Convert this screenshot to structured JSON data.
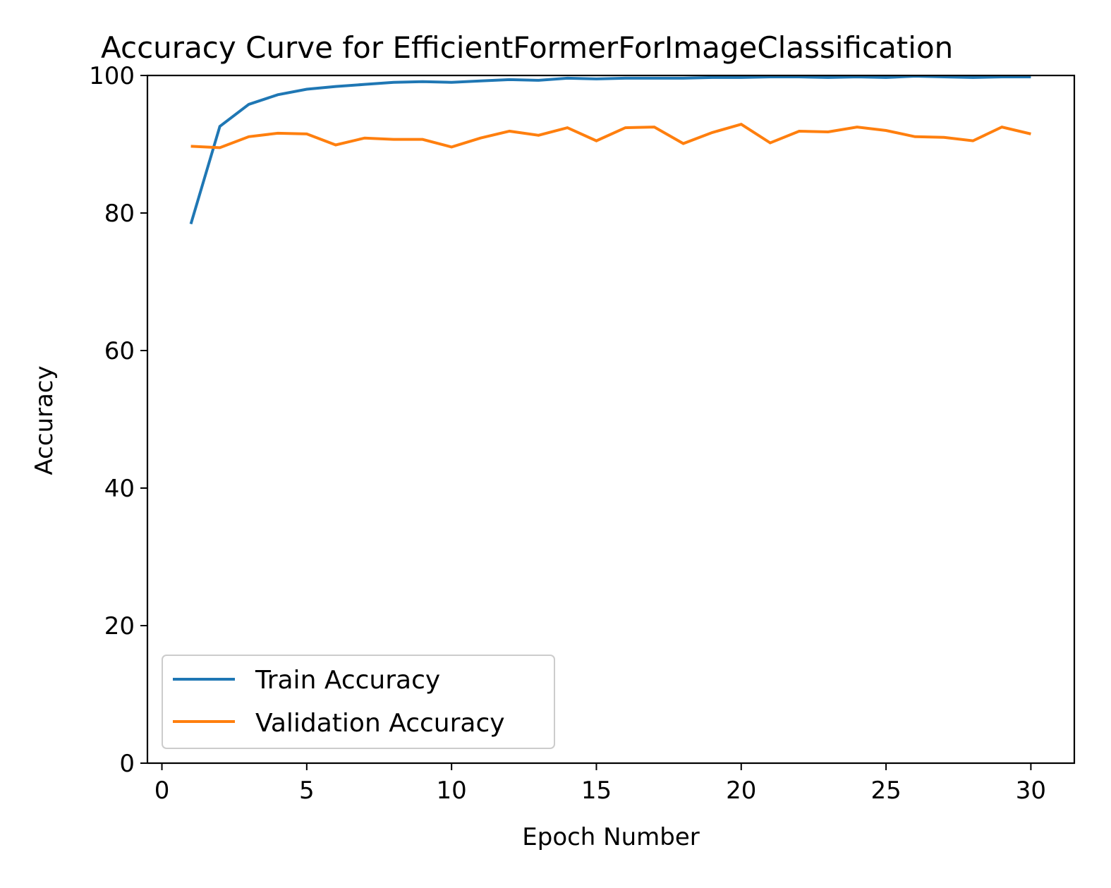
{
  "chart_data": {
    "type": "line",
    "title": "Accuracy Curve for  EfficientFormerForImageClassification",
    "xlabel": "Epoch Number",
    "ylabel": "Accuracy",
    "xlim": [
      -0.5,
      31.5
    ],
    "ylim": [
      0,
      100
    ],
    "xticks": [
      0,
      5,
      10,
      15,
      20,
      25,
      30
    ],
    "yticks": [
      0,
      20,
      40,
      60,
      80,
      100
    ],
    "grid": false,
    "legend_position": "lower-left",
    "x": [
      1,
      2,
      3,
      4,
      5,
      6,
      7,
      8,
      9,
      10,
      11,
      12,
      13,
      14,
      15,
      16,
      17,
      18,
      19,
      20,
      21,
      22,
      23,
      24,
      25,
      26,
      27,
      28,
      29,
      30
    ],
    "series": [
      {
        "name": "Train Accuracy",
        "color": "#1f77b4",
        "values": [
          78.4,
          92.6,
          95.8,
          97.2,
          98.0,
          98.4,
          98.7,
          99.0,
          99.1,
          99.0,
          99.2,
          99.4,
          99.3,
          99.6,
          99.5,
          99.6,
          99.6,
          99.6,
          99.7,
          99.7,
          99.8,
          99.8,
          99.7,
          99.8,
          99.7,
          99.9,
          99.8,
          99.7,
          99.8,
          99.8
        ]
      },
      {
        "name": "Validation Accuracy",
        "color": "#ff7f0e",
        "values": [
          89.7,
          89.5,
          91.1,
          91.6,
          91.5,
          89.9,
          90.9,
          90.7,
          90.7,
          89.6,
          90.9,
          91.9,
          91.3,
          92.4,
          90.5,
          92.4,
          92.5,
          90.1,
          91.7,
          92.9,
          90.2,
          91.9,
          91.8,
          92.5,
          92.0,
          91.1,
          91.0,
          90.5,
          92.5,
          91.5
        ]
      }
    ]
  }
}
